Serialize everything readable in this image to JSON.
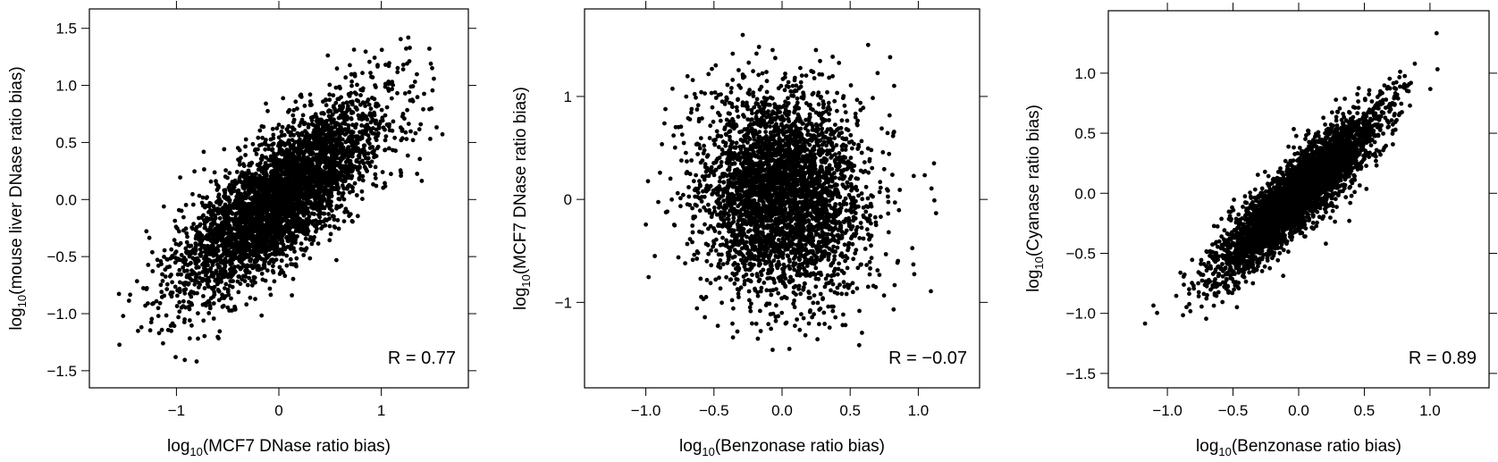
{
  "chart_data": [
    {
      "type": "scatter",
      "xlabel": {
        "prefix": "log",
        "sub": "10",
        "text": "(MCF7 DNase ratio bias)"
      },
      "ylabel": {
        "prefix": "log",
        "sub": "10",
        "text": "(mouse liver DNase ratio bias)"
      },
      "xlim": [
        -1.85,
        1.85
      ],
      "ylim": [
        -1.65,
        1.67
      ],
      "xticks": [
        -1,
        0,
        1
      ],
      "xtick_labels": [
        "−1",
        "0",
        "1"
      ],
      "yticks": [
        -1.5,
        -1.0,
        -0.5,
        0.0,
        0.5,
        1.0,
        1.5
      ],
      "ytick_labels": [
        "−1.5",
        "−1.0",
        "−0.5",
        "0.0",
        "0.5",
        "1.0",
        "1.5"
      ],
      "annotation": "R = 0.77",
      "correlation": 0.77,
      "n_points": 4000,
      "x_range_observed": [
        -1.62,
        1.62
      ],
      "y_range_observed": [
        -1.45,
        1.47
      ],
      "x_center": 0.0,
      "y_center": 0.0,
      "x_sd": 0.5,
      "y_sd": 0.43,
      "color": "#000000",
      "grid": false
    },
    {
      "type": "scatter",
      "xlabel": {
        "prefix": "log",
        "sub": "10",
        "text": "(Benzonase ratio bias)"
      },
      "ylabel": {
        "prefix": "log",
        "sub": "10",
        "text": "(MCF7 DNase ratio bias)"
      },
      "xlim": [
        -1.45,
        1.45
      ],
      "ylim": [
        -1.83,
        1.85
      ],
      "xticks": [
        -1.0,
        -0.5,
        0.0,
        0.5,
        1.0
      ],
      "xtick_labels": [
        "−1.0",
        "−0.5",
        "0.0",
        "0.5",
        "1.0"
      ],
      "yticks": [
        -1,
        0,
        1
      ],
      "ytick_labels": [
        "−1",
        "0",
        "1"
      ],
      "annotation": "R = −0.07",
      "correlation": -0.07,
      "n_points": 3600,
      "x_range_observed": [
        -1.3,
        1.25
      ],
      "y_range_observed": [
        -1.6,
        1.63
      ],
      "x_center": 0.0,
      "y_center": 0.05,
      "x_sd": 0.3,
      "y_sd": 0.5,
      "color": "#000000",
      "grid": false
    },
    {
      "type": "scatter",
      "xlabel": {
        "prefix": "log",
        "sub": "10",
        "text": "(Benzonase ratio bias)"
      },
      "ylabel": {
        "prefix": "log",
        "sub": "10",
        "text": "(Cyanase ratio bias)"
      },
      "xlim": [
        -1.45,
        1.45
      ],
      "ylim": [
        -1.62,
        1.52
      ],
      "xticks": [
        -1.0,
        -0.5,
        0.0,
        0.5,
        1.0
      ],
      "xtick_labels": [
        "−1.0",
        "−0.5",
        "0.0",
        "0.5",
        "1.0"
      ],
      "yticks": [
        -1.5,
        -1.0,
        -0.5,
        0.0,
        0.5,
        1.0
      ],
      "ytick_labels": [
        "−1.5",
        "−1.0",
        "−0.5",
        "0.0",
        "0.5",
        "1.0"
      ],
      "annotation": "R = 0.89",
      "correlation": 0.89,
      "n_points": 4000,
      "x_range_observed": [
        -1.3,
        1.27
      ],
      "y_range_observed": [
        -1.43,
        1.35
      ],
      "x_center": 0.0,
      "y_center": 0.0,
      "x_sd": 0.3,
      "y_sd": 0.33,
      "color": "#000000",
      "grid": false
    }
  ]
}
